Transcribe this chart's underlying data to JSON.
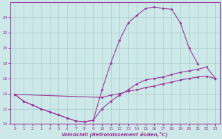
{
  "xlabel": "Windchill (Refroidissement éolien,°C)",
  "bg_color": "#cce8e8",
  "grid_color": "#aacccc",
  "line_color": "#993399",
  "xlim": [
    -0.5,
    23.5
  ],
  "ylim": [
    10,
    26
  ],
  "yticks": [
    10,
    12,
    14,
    16,
    18,
    20,
    22,
    24
  ],
  "xticks": [
    0,
    1,
    2,
    3,
    4,
    5,
    6,
    7,
    8,
    9,
    10,
    11,
    12,
    13,
    14,
    15,
    16,
    17,
    18,
    19,
    20,
    21,
    22,
    23
  ],
  "line1_x": [
    0,
    1,
    2,
    3,
    4,
    5,
    6,
    7,
    8,
    9,
    10,
    11,
    12,
    13,
    14,
    15,
    16,
    17,
    18,
    19,
    20,
    21
  ],
  "line1_y": [
    13.9,
    13.0,
    12.5,
    12.0,
    11.6,
    11.2,
    10.8,
    10.4,
    10.3,
    10.5,
    14.5,
    18.0,
    21.0,
    23.3,
    24.3,
    25.2,
    25.4,
    25.2,
    25.1,
    23.3,
    20.0,
    17.9
  ],
  "line2_x": [
    0,
    1,
    2,
    3,
    4,
    5,
    6,
    7,
    8,
    9,
    10,
    11,
    12,
    13,
    14,
    15,
    16,
    17,
    18,
    19,
    20,
    21,
    22,
    23
  ],
  "line2_y": [
    13.9,
    13.0,
    12.5,
    12.0,
    11.6,
    11.2,
    10.8,
    10.4,
    10.3,
    10.5,
    12.0,
    13.0,
    13.8,
    14.5,
    15.3,
    15.8,
    16.0,
    16.2,
    16.5,
    16.8,
    17.0,
    17.2,
    17.5,
    16.0
  ],
  "line3_x": [
    0,
    10,
    11,
    12,
    13,
    14,
    15,
    16,
    17,
    18,
    19,
    20,
    21,
    22,
    23
  ],
  "line3_y": [
    13.9,
    13.5,
    13.8,
    14.0,
    14.3,
    14.5,
    14.8,
    15.0,
    15.3,
    15.5,
    15.8,
    16.0,
    16.2,
    16.3,
    16.0
  ]
}
